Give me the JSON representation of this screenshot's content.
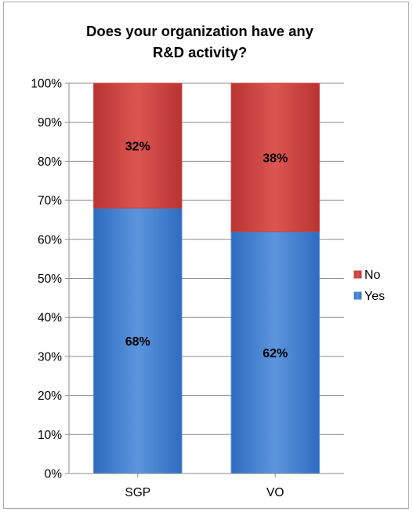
{
  "chart_data": {
    "type": "bar",
    "stacked": true,
    "percent_stacked": true,
    "title": "Does your organization have any\nR&D activity?",
    "xlabel": "",
    "ylabel": "",
    "categories": [
      "SGP",
      "VO"
    ],
    "series": [
      {
        "name": "Yes",
        "values": [
          68,
          62
        ],
        "labels": [
          "68%",
          "62%"
        ],
        "color": "#4a86d1"
      },
      {
        "name": "No",
        "values": [
          32,
          38
        ],
        "labels": [
          "32%",
          "38%"
        ],
        "color": "#c9403d"
      }
    ],
    "ylim": [
      0,
      100
    ],
    "yticks": [
      "0%",
      "10%",
      "20%",
      "30%",
      "40%",
      "50%",
      "60%",
      "70%",
      "80%",
      "90%",
      "100%"
    ],
    "grid": true,
    "legend_position": "right",
    "legend_order": [
      "No",
      "Yes"
    ]
  }
}
